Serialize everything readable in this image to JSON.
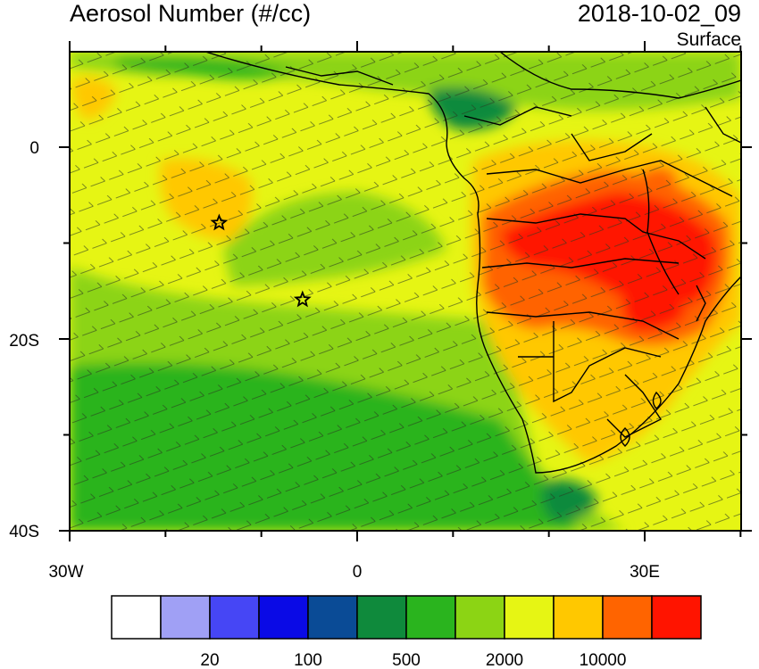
{
  "header": {
    "title": "Aerosol Number (#/cc)",
    "datetime": "2018-10-02_09",
    "level": "Surface"
  },
  "axes": {
    "lat_labels": [
      "0",
      "20S",
      "40S"
    ],
    "lon_labels": [
      "30W",
      "0",
      "30E"
    ]
  },
  "colorbar": {
    "labels": [
      "20",
      "100",
      "500",
      "2000",
      "10000"
    ],
    "colors": [
      "#ffffff",
      "#a0a0f5",
      "#4646f5",
      "#0a0ae6",
      "#0a4b96",
      "#0f8a3c",
      "#2ab41e",
      "#8cd414",
      "#e6f514",
      "#ffc800",
      "#ff6400",
      "#ff1400"
    ]
  },
  "markers": [
    {
      "name": "star-site-1",
      "lon": -14.4,
      "lat": -7.9
    },
    {
      "name": "star-site-2",
      "lon": -5.7,
      "lat": -15.9
    }
  ]
}
